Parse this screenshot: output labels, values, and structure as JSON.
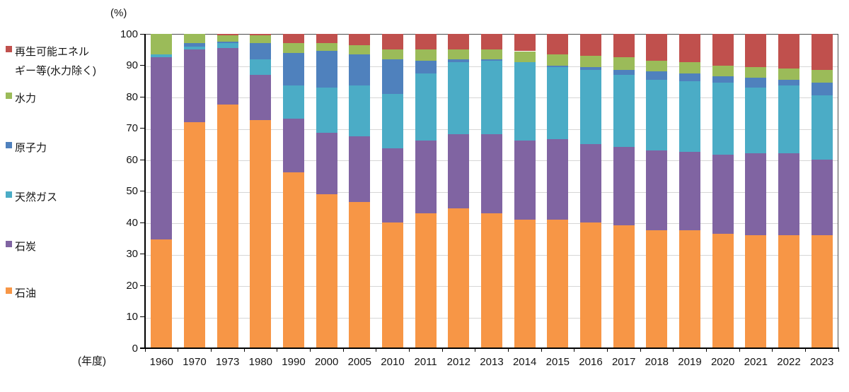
{
  "y_axis": {
    "unit_label": "(%)",
    "ticks": [
      0,
      10,
      20,
      30,
      40,
      50,
      60,
      70,
      80,
      90,
      100
    ],
    "range": [
      0,
      100
    ]
  },
  "x_axis": {
    "unit_label": "(年度)"
  },
  "legend": [
    {
      "label_lines": [
        "再生可能エネル",
        "ギー等(水力除く)"
      ],
      "series": "再生可能エネルギー等(水力除く)",
      "color": "#C0504D"
    },
    {
      "label_lines": [
        "水力"
      ],
      "series": "水力",
      "color": "#9BBB59"
    },
    {
      "label_lines": [
        "原子力"
      ],
      "series": "原子力",
      "color": "#4F81BD"
    },
    {
      "label_lines": [
        "天然ガス"
      ],
      "series": "天然ガス",
      "color": "#4BACC6"
    },
    {
      "label_lines": [
        "石炭"
      ],
      "series": "石炭",
      "color": "#8064A2"
    },
    {
      "label_lines": [
        "石油"
      ],
      "series": "石油",
      "color": "#F79646"
    }
  ],
  "chart_data": {
    "type": "bar",
    "stacked": true,
    "title": "",
    "xlabel": "(年度)",
    "ylabel": "(%)",
    "ylim": [
      0,
      100
    ],
    "grid": true,
    "legend_position": "left",
    "categories": [
      "1960",
      "1970",
      "1973",
      "1980",
      "1990",
      "2000",
      "2005",
      "2010",
      "2011",
      "2012",
      "2013",
      "2014",
      "2015",
      "2016",
      "2017",
      "2018",
      "2019",
      "2020",
      "2021",
      "2022",
      "2023"
    ],
    "stack_order_bottom_to_top": [
      "石油",
      "石炭",
      "天然ガス",
      "原子力",
      "水力",
      "再生可能エネルギー等(水力除く)"
    ],
    "series": [
      {
        "name": "石油",
        "color": "#F79646",
        "values": [
          34.5,
          72,
          77.5,
          72.5,
          56,
          49,
          46.5,
          40,
          43,
          44.5,
          43,
          41,
          41,
          40,
          39,
          37.5,
          37.5,
          36.5,
          36,
          36,
          36
        ]
      },
      {
        "name": "石炭",
        "color": "#8064A2",
        "values": [
          58,
          23,
          18,
          14.5,
          17,
          19.5,
          21,
          23.5,
          23,
          23.5,
          25,
          25,
          25.5,
          25,
          25,
          25.5,
          25,
          25,
          26,
          26,
          24
        ]
      },
      {
        "name": "天然ガス",
        "color": "#4BACC6",
        "values": [
          1,
          1,
          1.5,
          5,
          10.5,
          14.5,
          16,
          17.5,
          21.5,
          23,
          23.5,
          25,
          23,
          23.5,
          23,
          22.5,
          22.5,
          23,
          21,
          21.5,
          20.5
        ]
      },
      {
        "name": "原子力",
        "color": "#4F81BD",
        "values": [
          0,
          1,
          0.5,
          5,
          10.5,
          11.5,
          10,
          11,
          4,
          1,
          0.5,
          0,
          0.5,
          1,
          1.5,
          2.5,
          2.5,
          2,
          3,
          2,
          4
        ]
      },
      {
        "name": "水力",
        "color": "#9BBB59",
        "values": [
          6.5,
          3,
          2,
          2.5,
          3,
          2.5,
          3,
          3,
          3.5,
          3,
          3,
          3.5,
          3.5,
          3.5,
          4,
          3.5,
          3.5,
          3.5,
          3.5,
          3.5,
          4
        ]
      },
      {
        "name": "再生可能エネルギー等(水力除く)",
        "color": "#C0504D",
        "values": [
          0,
          0,
          0.5,
          0.5,
          3,
          3,
          3.5,
          5,
          5,
          5,
          5,
          5.5,
          6.5,
          7,
          7.5,
          8.5,
          9,
          10,
          10.5,
          11,
          11.5
        ]
      }
    ]
  }
}
